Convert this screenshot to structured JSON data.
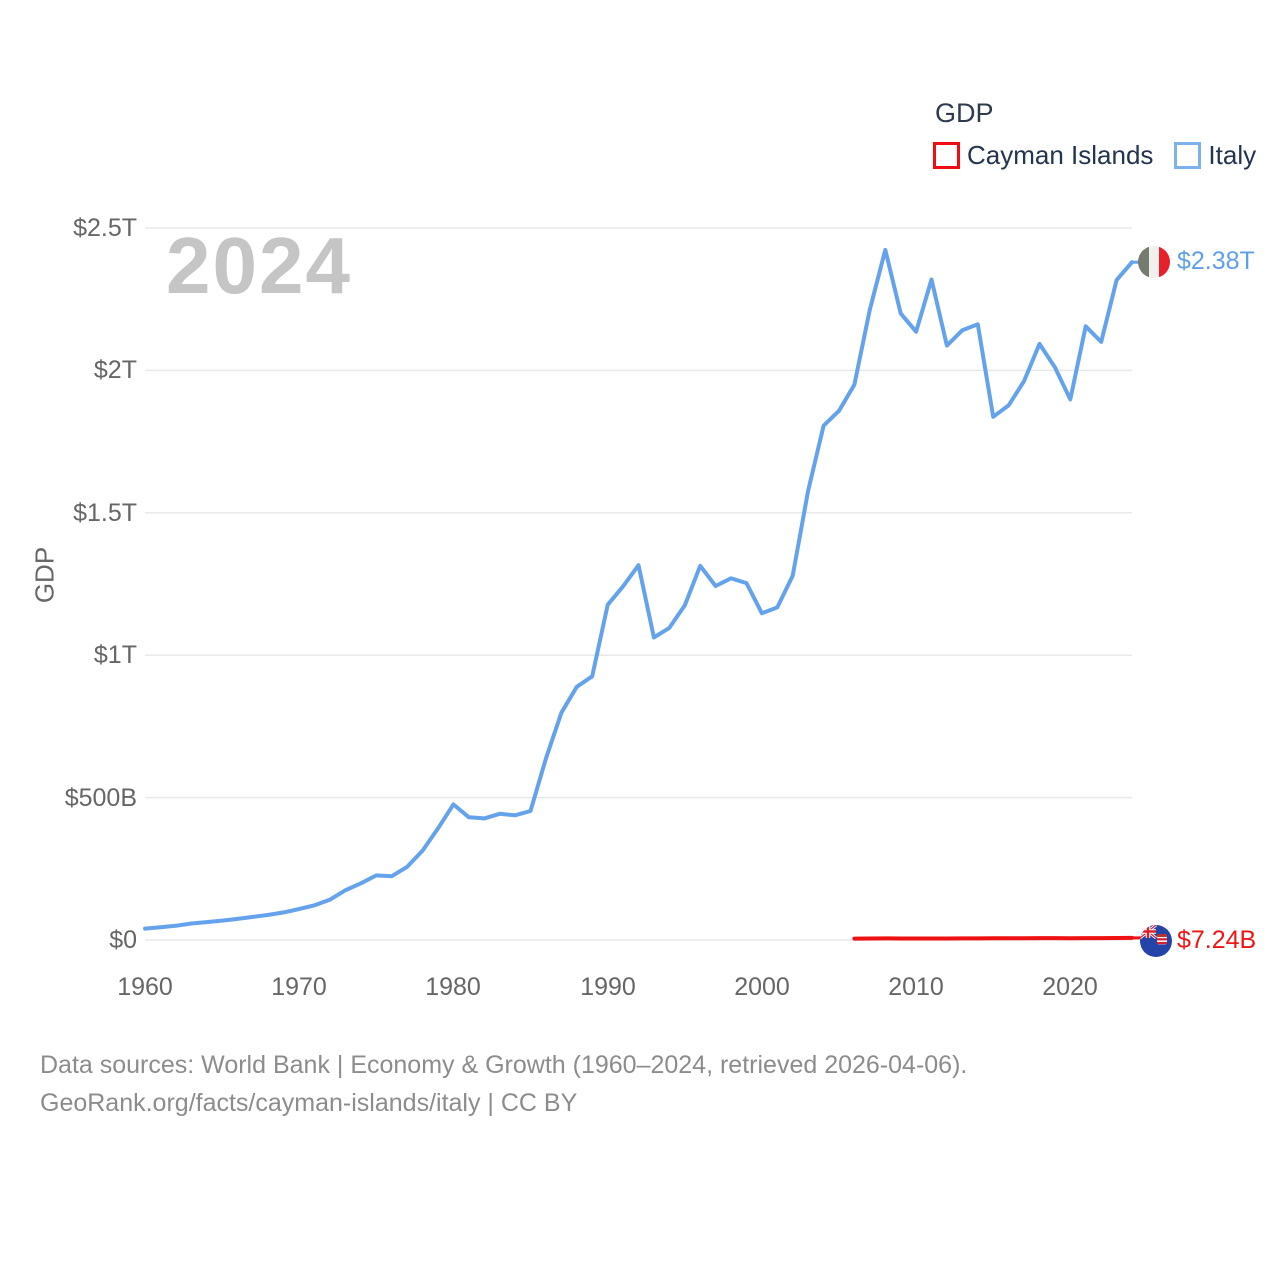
{
  "colors": {
    "italy_line": "#64a2ec",
    "cayman_line": "#ee1111",
    "gridline": "#e8e8ea",
    "legend_red_box": "#f00c12",
    "legend_blue_box": "#7cb1ec",
    "axis_text": "#666666",
    "legend_text": "#22344e",
    "watermark_text": "#c5c5c5",
    "footer_text": "#8c8c8c"
  },
  "watermark": "2024",
  "legend": {
    "title": "GDP",
    "items": [
      {
        "label": "Cayman Islands",
        "color": "#f00c12"
      },
      {
        "label": "Italy",
        "color": "#7cb1ec"
      }
    ]
  },
  "y_axis": {
    "title": "GDP",
    "ticks": [
      "$0",
      "$500B",
      "$1T",
      "$1.5T",
      "$2T",
      "$2.5T"
    ],
    "tick_values_billions": [
      0,
      500,
      1000,
      1500,
      2000,
      2500
    ]
  },
  "x_axis": {
    "ticks": [
      "1960",
      "1970",
      "1980",
      "1990",
      "2000",
      "2010",
      "2020"
    ]
  },
  "end_labels": {
    "italy": {
      "value": "$2.38T",
      "flag": "italy-flag-icon"
    },
    "cayman_islands": {
      "value": "$7.24B",
      "flag": "cayman-islands-flag-icon"
    }
  },
  "footer": {
    "line1": "Data sources: World Bank | Economy & Growth (1960–2024, retrieved 2026-04-06).",
    "line2": "GeoRank.org/facts/cayman-islands/italy | CC BY"
  },
  "chart_data": {
    "type": "line",
    "title": "GDP",
    "ylabel": "GDP",
    "unit": "USD billions",
    "x_range": [
      1960,
      2024
    ],
    "ylim_billions": [
      0,
      2500
    ],
    "grid": "horizontal",
    "legend_position": "top-right",
    "series": [
      {
        "name": "Italy",
        "color": "#64a2ec",
        "end_label": "$2.38T",
        "x": [
          1960,
          1961,
          1962,
          1963,
          1964,
          1965,
          1966,
          1967,
          1968,
          1969,
          1970,
          1971,
          1972,
          1973,
          1974,
          1975,
          1976,
          1977,
          1978,
          1979,
          1980,
          1981,
          1982,
          1983,
          1984,
          1985,
          1986,
          1987,
          1988,
          1989,
          1990,
          1991,
          1992,
          1993,
          1994,
          1995,
          1996,
          1997,
          1998,
          1999,
          2000,
          2001,
          2002,
          2003,
          2004,
          2005,
          2006,
          2007,
          2008,
          2009,
          2010,
          2011,
          2012,
          2013,
          2014,
          2015,
          2016,
          2017,
          2018,
          2019,
          2020,
          2021,
          2022,
          2023,
          2024
        ],
        "values_billions": [
          40,
          45,
          50,
          58,
          63,
          68,
          74,
          81,
          88,
          97,
          109,
          122,
          142,
          175,
          199,
          227,
          224,
          257,
          314,
          392,
          476,
          431,
          427,
          443,
          438,
          453,
          638,
          798,
          889,
          926,
          1177,
          1242,
          1316,
          1062,
          1096,
          1175,
          1314,
          1243,
          1270,
          1253,
          1147,
          1168,
          1279,
          1577,
          1806,
          1858,
          1950,
          2213,
          2423,
          2200,
          2136,
          2319,
          2087,
          2141,
          2162,
          1837,
          1877,
          1962,
          2093,
          2011,
          1898,
          2155,
          2100,
          2317,
          2380
        ]
      },
      {
        "name": "Cayman Islands",
        "color": "#ee1111",
        "end_label": "$7.24B",
        "x": [
          2006,
          2007,
          2008,
          2009,
          2010,
          2011,
          2012,
          2013,
          2014,
          2015,
          2016,
          2017,
          2018,
          2019,
          2020,
          2021,
          2022,
          2023,
          2024
        ],
        "values_billions": [
          4.9,
          5.4,
          5.6,
          5.3,
          5.2,
          5.3,
          5.4,
          5.5,
          5.7,
          5.9,
          6.1,
          6.3,
          6.6,
          6.6,
          6.1,
          6.5,
          6.8,
          7.1,
          7.24
        ]
      }
    ]
  }
}
